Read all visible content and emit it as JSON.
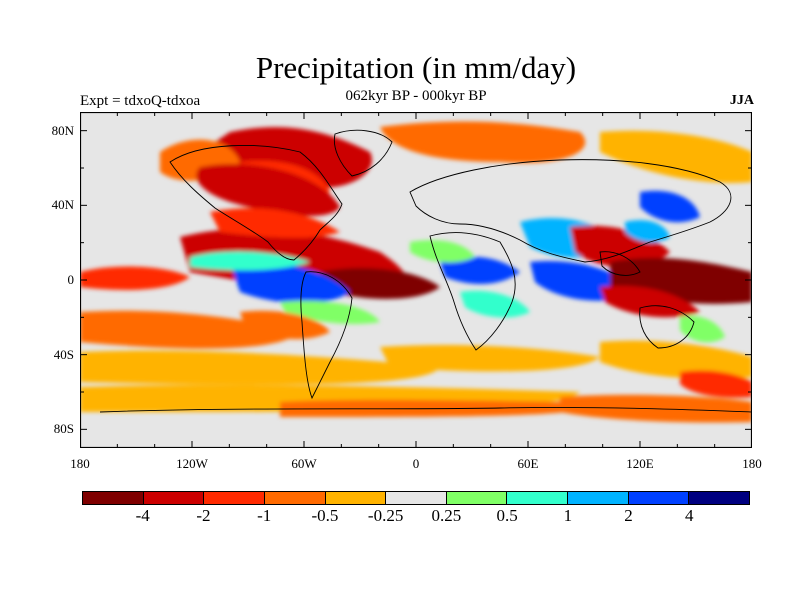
{
  "title": "Precipitation (in mm/day)",
  "subtitle": "062kyr BP - 000kyr BP",
  "left_label": "Expt = tdxoQ-tdxoa",
  "right_label": "JJA",
  "lat_ticks": [
    "80N",
    "40N",
    "0",
    "40S",
    "80S"
  ],
  "lon_ticks": [
    "180",
    "120W",
    "60W",
    "0",
    "60E",
    "120E",
    "180"
  ],
  "colorbar": {
    "colors": [
      "#7f0000",
      "#cc0000",
      "#ff2a00",
      "#ff6a00",
      "#ffb300",
      "#e6e6e6",
      "#80ff66",
      "#33ffcc",
      "#00b3ff",
      "#0040ff",
      "#000080"
    ],
    "labels": [
      "-4",
      "-2",
      "-1",
      "-0.5",
      "-0.25",
      "0.25",
      "0.5",
      "1",
      "2",
      "4"
    ]
  },
  "colors": {
    "ocean_neutral": "#e6e6e6",
    "coast": "#000000"
  }
}
